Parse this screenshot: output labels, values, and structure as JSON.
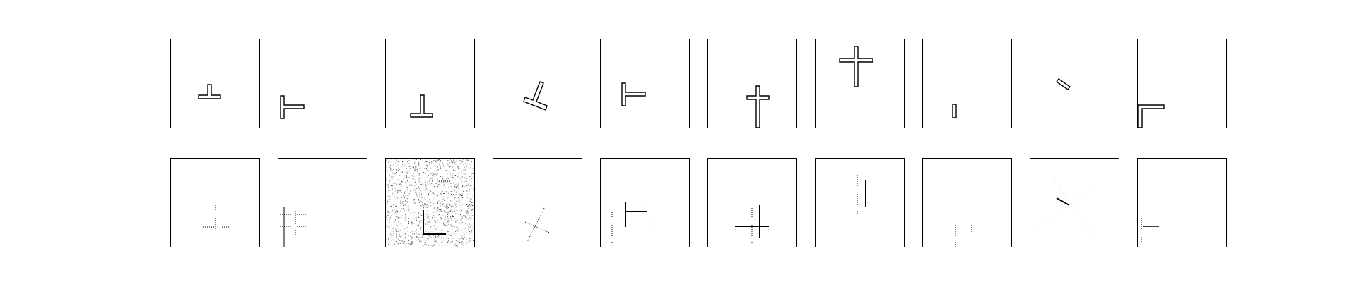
{
  "colors": {
    "background": "#ffffff",
    "stroke": "#000000",
    "noise": "#222222"
  },
  "rows": [
    {
      "name": "outline-shapes",
      "panels": [
        {
          "shape": "inverted-t"
        },
        {
          "shape": "t-rotated-left"
        },
        {
          "shape": "inverted-t"
        },
        {
          "shape": "inverted-t-tilted"
        },
        {
          "shape": "t-rotated-left"
        },
        {
          "shape": "cross"
        },
        {
          "shape": "cross"
        },
        {
          "shape": "short-bar"
        },
        {
          "shape": "tilted-bar"
        },
        {
          "shape": "l-corner"
        }
      ]
    },
    {
      "name": "noisy-line-shapes",
      "panels": [
        {
          "shape": "dotted-inverted-t"
        },
        {
          "shape": "dotted-grid-lines"
        },
        {
          "shape": "noise-field-with-l"
        },
        {
          "shape": "dotted-crossed-lines"
        },
        {
          "shape": "dotted-t-with-ghost"
        },
        {
          "shape": "dotted-cross"
        },
        {
          "shape": "dotted-vertical-line"
        },
        {
          "shape": "faint-vertical-line"
        },
        {
          "shape": "faint-diagonal-with-ghost"
        },
        {
          "shape": "dotted-short-line"
        }
      ]
    }
  ]
}
